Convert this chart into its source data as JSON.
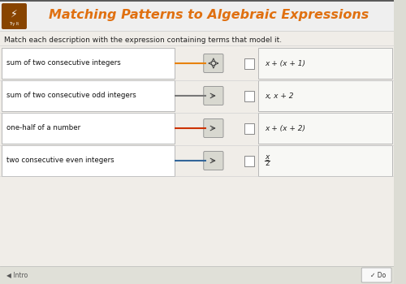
{
  "title": "Matching Patterns to Algebraic Expressions",
  "subtitle": "Match each description with the expression containing terms that model it.",
  "header_bg": "#f0f0f0",
  "header_text_color": "#e07010",
  "body_bg": "#e8e8e8",
  "content_bg": "#f5f5f0",
  "left_labels": [
    "sum of two consecutive integers",
    "sum of two consecutive odd integers",
    "one-half of a number",
    "two consecutive even integers"
  ],
  "right_labels": [
    "x + (x + 1)",
    "x, x + 2",
    "x + (x + 2)",
    "x/2"
  ],
  "arrow_colors": [
    "#e8820a",
    "#777777",
    "#cc3300",
    "#336699"
  ],
  "logo_bg": "#773300"
}
